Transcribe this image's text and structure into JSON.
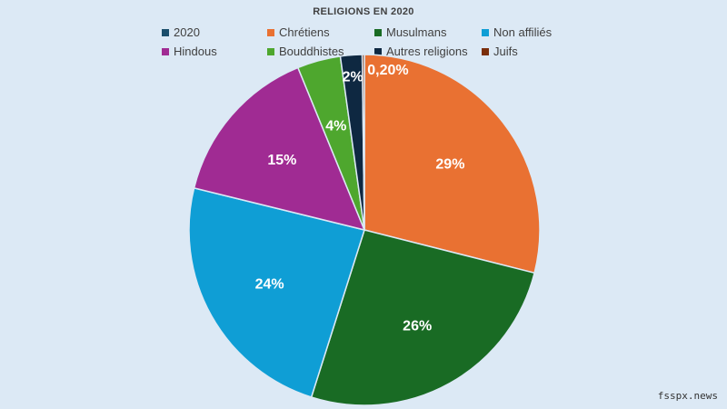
{
  "chart_data": {
    "type": "pie",
    "title": "RELIGIONS EN 2020",
    "legend_title": "2020",
    "legend_position": "top",
    "colors": {
      "legend_title": "#1a4e6b"
    },
    "slices": [
      {
        "label": "Chrétiens",
        "value": 29,
        "display": "29%",
        "color": "#e97132"
      },
      {
        "label": "Musulmans",
        "value": 26,
        "display": "26%",
        "color": "#196b24"
      },
      {
        "label": "Non affiliés",
        "value": 24,
        "display": "24%",
        "color": "#0f9ed5"
      },
      {
        "label": "Hindous",
        "value": 15,
        "display": "15%",
        "color": "#a02b93"
      },
      {
        "label": "Bouddhistes",
        "value": 4,
        "display": "4%",
        "color": "#4ea72e"
      },
      {
        "label": "Autres religions",
        "value": 2,
        "display": "2%",
        "color": "#0e2841"
      },
      {
        "label": "Juifs",
        "value": 0.2,
        "display": "0,20%",
        "color": "#7a2e0b"
      }
    ]
  },
  "watermark": "fsspx.news"
}
